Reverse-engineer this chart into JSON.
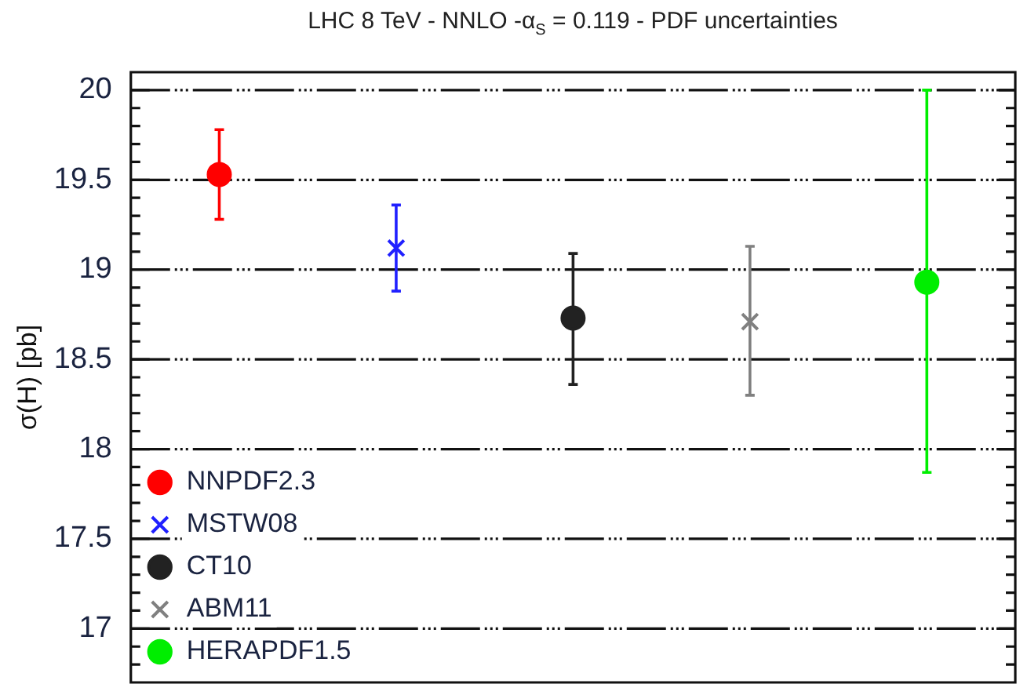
{
  "chart_data": {
    "type": "scatter",
    "title": "LHC 8 TeV - NNLO -α$_{S}$ = 0.119 - PDF uncertainties",
    "ylabel": "σ(H) [pb]",
    "categories": [
      null,
      null,
      null,
      null,
      null
    ],
    "series": [
      {
        "name": "NNPDF2.3",
        "color": "#ff0000",
        "marker": "circle",
        "values": [
          19.53,
          null,
          null,
          null,
          null
        ],
        "errors": [
          [
            19.28,
            19.78
          ],
          null,
          null,
          null,
          null
        ]
      },
      {
        "name": "MSTW08",
        "color": "#2020ff",
        "marker": "cross",
        "values": [
          null,
          19.12,
          null,
          null,
          null
        ],
        "errors": [
          null,
          [
            18.88,
            19.36
          ],
          null,
          null,
          null
        ]
      },
      {
        "name": "CT10",
        "color": "#222222",
        "marker": "circle",
        "values": [
          null,
          null,
          18.73,
          null,
          null
        ],
        "errors": [
          null,
          null,
          [
            18.36,
            19.09
          ],
          null,
          null
        ]
      },
      {
        "name": "ABM11",
        "color": "#808080",
        "marker": "cross",
        "values": [
          null,
          null,
          null,
          18.71,
          null
        ],
        "errors": [
          null,
          null,
          null,
          [
            18.3,
            19.13
          ],
          null
        ]
      },
      {
        "name": "HERAPDF1.5",
        "color": "#00ee00",
        "marker": "circle",
        "values": [
          null,
          null,
          null,
          null,
          18.93
        ],
        "errors": [
          null,
          null,
          null,
          null,
          [
            17.87,
            20.0
          ]
        ]
      }
    ],
    "ylim": [
      16.7,
      20.1
    ],
    "yticks": [
      {
        "value": 16.8,
        "label": null
      },
      {
        "value": 16.9,
        "label": null
      },
      17,
      {
        "value": 17.1,
        "label": null
      },
      {
        "value": 17.2,
        "label": null
      },
      {
        "value": 17.3,
        "label": null
      },
      {
        "value": 17.4,
        "label": null
      },
      17.5,
      {
        "value": 17.6,
        "label": null
      },
      {
        "value": 17.7,
        "label": null
      },
      {
        "value": 17.8,
        "label": null
      },
      {
        "value": 17.9,
        "label": null
      },
      18,
      {
        "value": 18.1,
        "label": null
      },
      {
        "value": 18.2,
        "label": null
      },
      {
        "value": 18.3,
        "label": null
      },
      {
        "value": 18.4,
        "label": null
      },
      18.5,
      {
        "value": 18.6,
        "label": null
      },
      {
        "value": 18.7,
        "label": null
      },
      {
        "value": 18.8,
        "label": null
      },
      {
        "value": 18.9,
        "label": null
      },
      19,
      {
        "value": 19.1,
        "label": null
      },
      {
        "value": 19.2,
        "label": null
      },
      {
        "value": 19.3,
        "label": null
      },
      {
        "value": 19.4,
        "label": null
      },
      19.5,
      {
        "value": 19.6,
        "label": null
      },
      {
        "value": 19.7,
        "label": null
      },
      {
        "value": 19.8,
        "label": null
      },
      {
        "value": 19.9,
        "label": null
      },
      20
    ],
    "grid": "y",
    "legend": "bottom left"
  }
}
